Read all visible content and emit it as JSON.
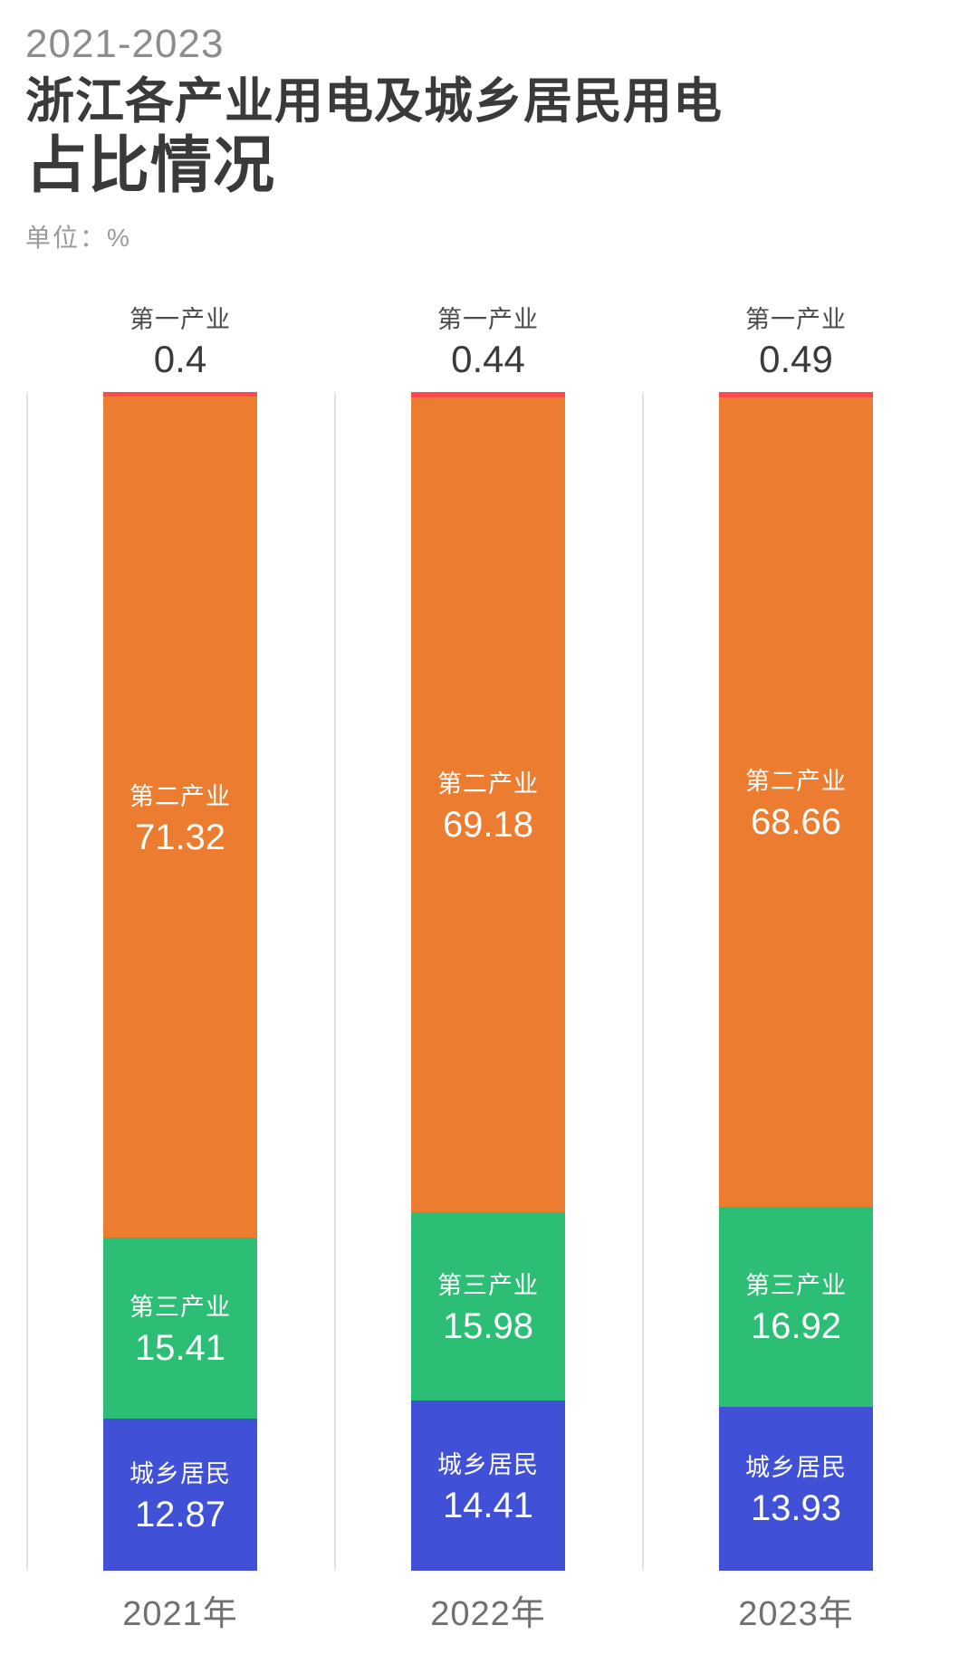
{
  "header": {
    "period": "2021-2023",
    "title_line1": "浙江各产业用电及城乡居民用电",
    "title_line2": "占比情况",
    "unit_label": "单位：%"
  },
  "colors": {
    "first_industry_red": "#FA4A52",
    "second_industry_orange": "#EC7C30",
    "third_industry_green": "#2DBE76",
    "residents_blue": "#4051D8",
    "axis_line_gray": "#E3E3E3",
    "title_dark": "#3A3A3A",
    "muted_gray": "#8C8C8C"
  },
  "chart_data": {
    "type": "bar",
    "subtype": "stacked-100-percent-columns",
    "title": "2021-2023浙江各产业用电及城乡居民用电占比情况",
    "unit": "%",
    "categories": [
      "2021年",
      "2022年",
      "2023年"
    ],
    "series": [
      {
        "name": "第一产业",
        "color": "#FA4A52",
        "values": [
          0.4,
          0.44,
          0.49
        ],
        "label_position": "above-bar"
      },
      {
        "name": "第二产业",
        "color": "#EC7C30",
        "values": [
          71.32,
          69.18,
          68.66
        ],
        "label_position": "inside"
      },
      {
        "name": "第三产业",
        "color": "#2DBE76",
        "values": [
          15.41,
          15.98,
          16.92
        ],
        "label_position": "inside"
      },
      {
        "name": "城乡居民",
        "color": "#4051D8",
        "values": [
          12.87,
          14.41,
          13.93
        ],
        "label_position": "inside"
      }
    ],
    "ylim": [
      0,
      100
    ],
    "grid": false,
    "legend": false
  }
}
